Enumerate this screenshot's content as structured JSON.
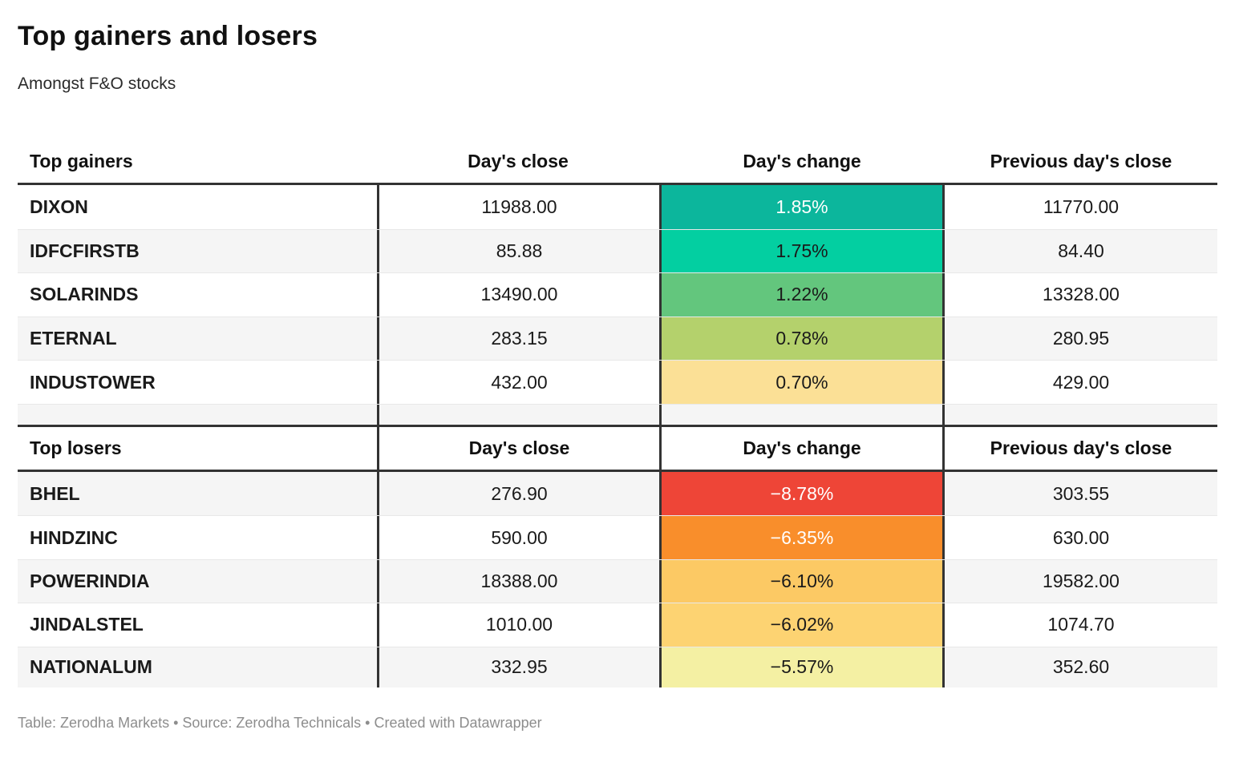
{
  "title": "Top gainers and losers",
  "subtitle": "Amongst F&O stocks",
  "footer": "Table: Zerodha Markets • Source: Zerodha Technicals • Created with Datawrapper",
  "colors": {
    "header_border": "#333333",
    "row_stripe": "#f5f5f5",
    "row_separator": "#e8e8e8",
    "footer_text": "#8d8d8d"
  },
  "gainers": {
    "label": "Top gainers",
    "col_close": "Day's close",
    "col_change": "Day's change",
    "col_prev": "Previous day's close",
    "rows": [
      {
        "name": "DIXON",
        "close": "11988.00",
        "change": "1.85%",
        "prev": "11770.00",
        "bg": "#0cb69c",
        "fg": "#ffffff"
      },
      {
        "name": "IDFCFIRSTB",
        "close": "85.88",
        "change": "1.75%",
        "prev": "84.40",
        "bg": "#03cfa1",
        "fg": "#1a1a1a"
      },
      {
        "name": "SOLARINDS",
        "close": "13490.00",
        "change": "1.22%",
        "prev": "13328.00",
        "bg": "#63c67d",
        "fg": "#1a1a1a"
      },
      {
        "name": "ETERNAL",
        "close": "283.15",
        "change": "0.78%",
        "prev": "280.95",
        "bg": "#b4d16c",
        "fg": "#1a1a1a"
      },
      {
        "name": "INDUSTOWER",
        "close": "432.00",
        "change": "0.70%",
        "prev": "429.00",
        "bg": "#fbe096",
        "fg": "#1a1a1a"
      }
    ]
  },
  "losers": {
    "label": "Top losers",
    "col_close": "Day's close",
    "col_change": "Day's change",
    "col_prev": "Previous day's close",
    "rows": [
      {
        "name": "BHEL",
        "close": "276.90",
        "change": "−8.78%",
        "prev": "303.55",
        "bg": "#ee4537",
        "fg": "#ffffff"
      },
      {
        "name": "HINDZINC",
        "close": "590.00",
        "change": "−6.35%",
        "prev": "630.00",
        "bg": "#f98e2b",
        "fg": "#ffffff"
      },
      {
        "name": "POWERINDIA",
        "close": "18388.00",
        "change": "−6.10%",
        "prev": "19582.00",
        "bg": "#fcc964",
        "fg": "#1a1a1a"
      },
      {
        "name": "JINDALSTEL",
        "close": "1010.00",
        "change": "−6.02%",
        "prev": "1074.70",
        "bg": "#fdd372",
        "fg": "#1a1a1a"
      },
      {
        "name": "NATIONALUM",
        "close": "332.95",
        "change": "−5.57%",
        "prev": "352.60",
        "bg": "#f4f0a3",
        "fg": "#1a1a1a"
      }
    ]
  },
  "chart_data": [
    {
      "type": "table",
      "title": "Top gainers",
      "columns": [
        "Top gainers",
        "Day's close",
        "Day's change",
        "Previous day's close"
      ],
      "rows": [
        [
          "DIXON",
          11988.0,
          "1.85%",
          11770.0
        ],
        [
          "IDFCFIRSTB",
          85.88,
          "1.75%",
          84.4
        ],
        [
          "SOLARINDS",
          13490.0,
          "1.22%",
          13328.0
        ],
        [
          "ETERNAL",
          283.15,
          "0.78%",
          280.95
        ],
        [
          "INDUSTOWER",
          432.0,
          "0.70%",
          429.0
        ]
      ]
    },
    {
      "type": "table",
      "title": "Top losers",
      "columns": [
        "Top losers",
        "Day's close",
        "Day's change",
        "Previous day's close"
      ],
      "rows": [
        [
          "BHEL",
          276.9,
          "-8.78%",
          303.55
        ],
        [
          "HINDZINC",
          590.0,
          "-6.35%",
          630.0
        ],
        [
          "POWERINDIA",
          18388.0,
          "-6.10%",
          19582.0
        ],
        [
          "JINDALSTEL",
          1010.0,
          "-6.02%",
          1074.7
        ],
        [
          "NATIONALUM",
          332.95,
          "-5.57%",
          352.6
        ]
      ]
    }
  ]
}
